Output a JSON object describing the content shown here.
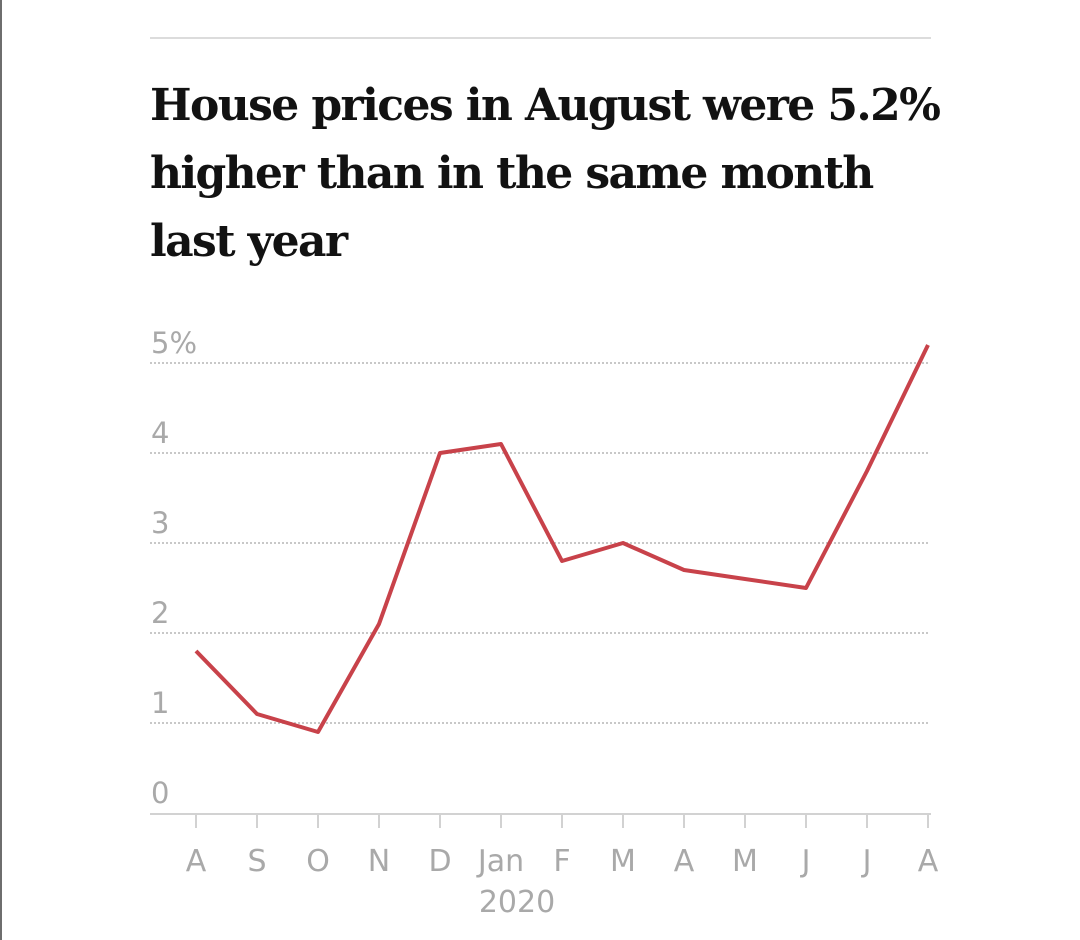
{
  "chart_data": {
    "type": "line",
    "title": "House prices in August were 5.2% higher than in the same month last year",
    "x": [
      "A",
      "S",
      "O",
      "N",
      "D",
      "Jan",
      "F",
      "M",
      "A",
      "M",
      "J",
      "J",
      "A"
    ],
    "x_sublabel": {
      "under": "Jan",
      "text": "2020"
    },
    "series": [
      {
        "values": [
          1.8,
          1.1,
          0.9,
          2.1,
          4.0,
          4.1,
          2.8,
          3.0,
          2.7,
          2.6,
          2.5,
          3.8,
          5.2
        ],
        "color": "#c8424a"
      }
    ],
    "yticks": [
      {
        "value": 0,
        "label": "0"
      },
      {
        "value": 1,
        "label": "1"
      },
      {
        "value": 2,
        "label": "2"
      },
      {
        "value": 3,
        "label": "3"
      },
      {
        "value": 4,
        "label": "4"
      },
      {
        "value": 5,
        "label": "5%"
      }
    ],
    "ylim": [
      0,
      5.3
    ],
    "grid": true,
    "legend": "none",
    "colors": {
      "line": "#c8424a",
      "grid": "#c8c8c8",
      "tick_label": "#a9a9a9",
      "axis": "#d2d2d2"
    }
  }
}
